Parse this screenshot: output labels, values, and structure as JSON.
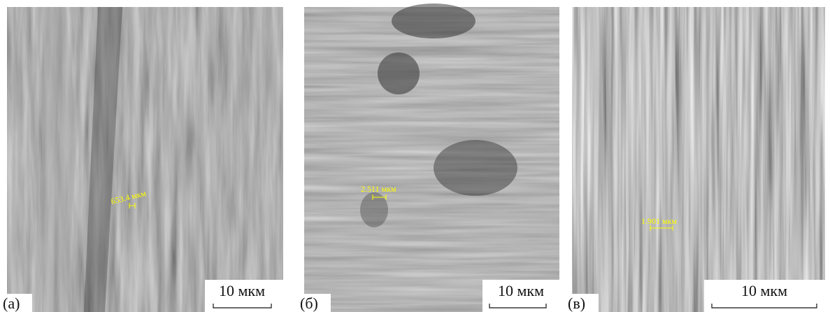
{
  "panels": [
    {
      "label": "(a)",
      "scale_bar": "10 мкм",
      "measurement": "653.4 мкм"
    },
    {
      "label": "(б)",
      "scale_bar": "10 мкм",
      "measurement": "2.511 мкм"
    },
    {
      "label": "(в)",
      "scale_bar": "10 мкм",
      "measurement": "1.901 мкм"
    }
  ]
}
